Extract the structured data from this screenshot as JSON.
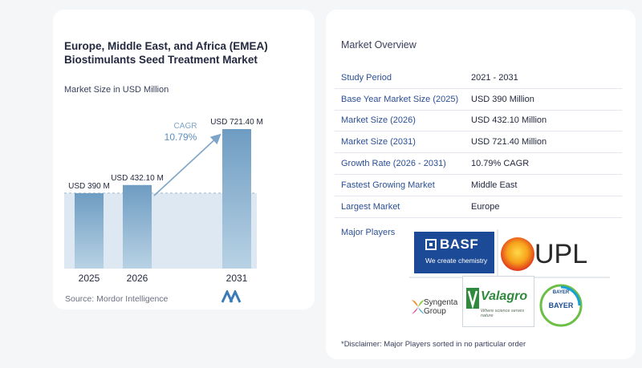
{
  "chart_title": "Europe, Middle East, and Africa (EMEA) Biostimulants Seed Treatment Market",
  "chart_subtitle": "Market Size in USD Million",
  "source": "Source:  Mordor Intelligence",
  "chart_data": {
    "type": "bar",
    "categories": [
      "2025",
      "2026",
      "2031"
    ],
    "values": [
      390,
      432.1,
      721.4
    ],
    "data_labels": [
      "USD 390 M",
      "USD 432.10 M",
      "USD 721.40 M"
    ],
    "cagr_label": "CAGR",
    "cagr_value": "10.79%",
    "colors": {
      "bar_top": "#6e9cc2",
      "bar_bottom": "#b8d2e4",
      "band": "#dde8f2",
      "arrow": "#7ea5c8"
    }
  },
  "overview": {
    "title": "Market Overview",
    "rows": [
      {
        "key": "Study Period",
        "value": "2021 - 2031"
      },
      {
        "key": "Base Year Market Size (2025)",
        "value": "USD 390 Million"
      },
      {
        "key": "Market Size (2026)",
        "value": "USD 432.10 Million"
      },
      {
        "key": "Market Size (2031)",
        "value": "USD 721.40 Million"
      },
      {
        "key": "Growth Rate (2026 - 2031)",
        "value": "10.79% CAGR"
      },
      {
        "key": "Fastest Growing Market",
        "value": "Middle East"
      },
      {
        "key": "Largest Market",
        "value": "Europe"
      }
    ],
    "players_label": "Major Players",
    "logos": {
      "basf": "BASF",
      "basf_tagline": "We create chemistry",
      "upl": "UPL",
      "syngenta": "Syngenta",
      "syngenta_sub": "Group",
      "valagro": "Valagro",
      "valagro_tagline": "Where science serves nature",
      "bayer_top": "BAYER",
      "bayer_side": "BAYER"
    },
    "disclaimer": "*Disclaimer: Major Players sorted in no particular order"
  }
}
